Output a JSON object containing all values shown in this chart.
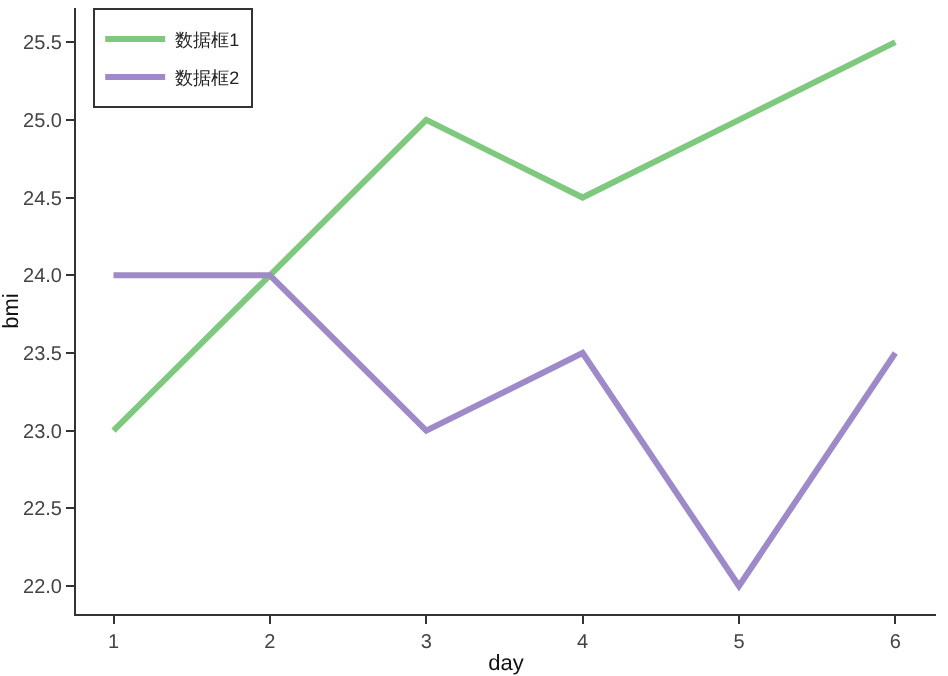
{
  "chart_data": {
    "type": "line",
    "xlabel": "day",
    "ylabel": "bmi",
    "x": [
      1,
      2,
      3,
      4,
      5,
      6
    ],
    "series": [
      {
        "name": "数据框1",
        "color": "#7fc97f",
        "values": [
          23,
          24,
          25,
          24.5,
          25,
          25.5
        ]
      },
      {
        "name": "数据框2",
        "color": "#9e8ac8",
        "values": [
          24,
          24,
          23,
          23.5,
          22,
          23.5
        ]
      }
    ],
    "xlim": [
      0.76,
      6.26
    ],
    "xticks": [
      1,
      2,
      3,
      4,
      5,
      6
    ],
    "ylim": [
      21.82,
      25.72
    ],
    "yticks": [
      {
        "value": 22,
        "label": "22.0"
      },
      {
        "value": 22.5,
        "label": "22.5"
      },
      {
        "value": 23,
        "label": "23.0"
      },
      {
        "value": 23.5,
        "label": "23.5"
      },
      {
        "value": 24,
        "label": "24.0"
      },
      {
        "value": 24.5,
        "label": "24.5"
      },
      {
        "value": 25,
        "label": "25.0"
      },
      {
        "value": 25.5,
        "label": "25.5"
      }
    ],
    "grid": false,
    "legend": "top left",
    "marker": "none",
    "line_style": "solid"
  }
}
